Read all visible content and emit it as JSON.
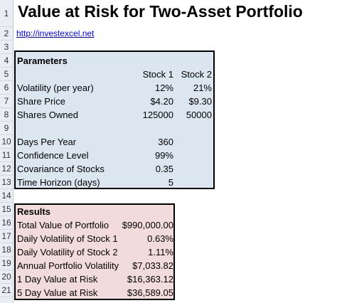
{
  "title": "Value at Risk for Two-Asset Portfolio",
  "link": "http://investexcel.net",
  "row_numbers": [
    "1",
    "2",
    "3",
    "4",
    "5",
    "6",
    "7",
    "8",
    "9",
    "10",
    "11",
    "12",
    "13",
    "14",
    "15",
    "16",
    "17",
    "18",
    "19",
    "20",
    "21"
  ],
  "parameters": {
    "heading": "Parameters",
    "col1": "Stock 1",
    "col2": "Stock 2",
    "rows": [
      {
        "label": "Volatility (per year)",
        "v1": "12%",
        "v2": "21%"
      },
      {
        "label": "Share Price",
        "v1": "$4.20",
        "v2": "$9.30"
      },
      {
        "label": "Shares Owned",
        "v1": "125000",
        "v2": "50000"
      }
    ],
    "extra": [
      {
        "label": "Days Per Year",
        "v": "360"
      },
      {
        "label": "Confidence Level",
        "v": "99%"
      },
      {
        "label": "Covariance of Stocks",
        "v": "0.35"
      },
      {
        "label": "Time Horizon (days)",
        "v": "5"
      }
    ]
  },
  "results": {
    "heading": "Results",
    "rows": [
      {
        "label": "Total Value of Portfolio",
        "v": "$990,000.00"
      },
      {
        "label": "Daily Volatility of Stock 1",
        "v": "0.63%"
      },
      {
        "label": "Daily Volatility of Stock 2",
        "v": "1.11%"
      },
      {
        "label": "Annual Portfolio Volatility",
        "v": "$7,033.82"
      },
      {
        "label": "1 Day Value at Risk",
        "v": "$16,363.12"
      },
      {
        "label": "5 Day Value at Risk",
        "v": "$36,589.05"
      }
    ]
  }
}
